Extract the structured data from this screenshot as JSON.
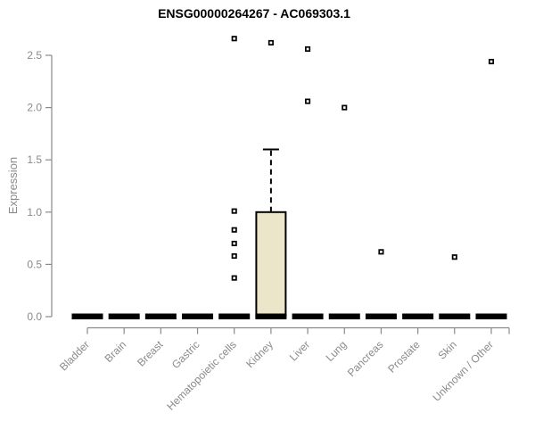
{
  "chart_data": {
    "type": "boxplot",
    "title": "ENSG00000264267 - AC069303.1",
    "ylabel": "Expression",
    "xlabel": "",
    "ytick_labels": [
      "0.0",
      "0.5",
      "1.0",
      "1.5",
      "2.0",
      "2.5"
    ],
    "ylim": [
      0,
      2.7
    ],
    "grid": false,
    "legend": "none",
    "categories": [
      "Bladder",
      "Brain",
      "Breast",
      "Gastric",
      "Hematopoietic cells",
      "Kidney",
      "Liver",
      "Lung",
      "Pancreas",
      "Prostate",
      "Skin",
      "Unknown / Other"
    ],
    "boxes": [
      {
        "label": "Bladder",
        "whisker_low": 0,
        "q1": 0,
        "median": 0,
        "q3": 0,
        "whisker_high": 0,
        "outliers": []
      },
      {
        "label": "Brain",
        "whisker_low": 0,
        "q1": 0,
        "median": 0,
        "q3": 0,
        "whisker_high": 0,
        "outliers": []
      },
      {
        "label": "Breast",
        "whisker_low": 0,
        "q1": 0,
        "median": 0,
        "q3": 0,
        "whisker_high": 0,
        "outliers": []
      },
      {
        "label": "Gastric",
        "whisker_low": 0,
        "q1": 0,
        "median": 0,
        "q3": 0,
        "whisker_high": 0,
        "outliers": []
      },
      {
        "label": "Hematopoietic cells",
        "whisker_low": 0,
        "q1": 0,
        "median": 0,
        "q3": 0,
        "whisker_high": 0,
        "outliers": [
          2.66,
          1.01,
          0.83,
          0.7,
          0.58,
          0.37
        ]
      },
      {
        "label": "Kidney",
        "whisker_low": 0,
        "q1": 0,
        "median": 0,
        "q3": 1.0,
        "whisker_high": 1.6,
        "outliers": [
          2.62
        ]
      },
      {
        "label": "Liver",
        "whisker_low": 0,
        "q1": 0,
        "median": 0,
        "q3": 0,
        "whisker_high": 0,
        "outliers": [
          2.56,
          2.06
        ]
      },
      {
        "label": "Lung",
        "whisker_low": 0,
        "q1": 0,
        "median": 0,
        "q3": 0,
        "whisker_high": 0,
        "outliers": [
          2.0
        ]
      },
      {
        "label": "Pancreas",
        "whisker_low": 0,
        "q1": 0,
        "median": 0,
        "q3": 0,
        "whisker_high": 0,
        "outliers": [
          0.62
        ]
      },
      {
        "label": "Prostate",
        "whisker_low": 0,
        "q1": 0,
        "median": 0,
        "q3": 0,
        "whisker_high": 0,
        "outliers": []
      },
      {
        "label": "Skin",
        "whisker_low": 0,
        "q1": 0,
        "median": 0,
        "q3": 0,
        "whisker_high": 0,
        "outliers": [
          0.57
        ]
      },
      {
        "label": "Unknown / Other",
        "whisker_low": 0,
        "q1": 0,
        "median": 0,
        "q3": 0,
        "whisker_high": 0,
        "outliers": [
          2.44
        ]
      }
    ],
    "colors": {
      "box_fill": "#ebe6ca",
      "box_stroke": "#000000",
      "zero_bar": "#000000",
      "axis": "#8a8a8a",
      "tick_label": "#8a8a8a",
      "title": "#000000",
      "background": "#ffffff"
    }
  }
}
